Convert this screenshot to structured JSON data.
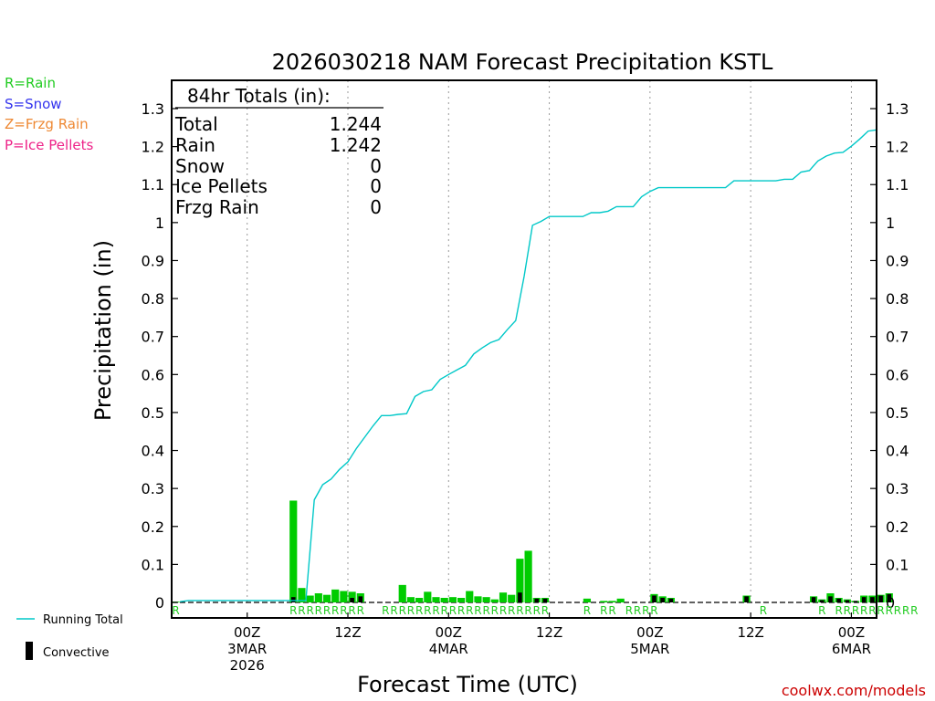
{
  "chart_data": {
    "type": "bar",
    "title": "2026030218 NAM Forecast Precipitation KSTL",
    "xlabel": "Forecast Time (UTC)",
    "ylabel": "Precipitation (in)",
    "ylim": [
      0,
      1.35
    ],
    "yticks": [
      0,
      0.1,
      0.2,
      0.3,
      0.4,
      0.5,
      0.6,
      0.7,
      0.8,
      0.9,
      1,
      1.1,
      1.2,
      1.3
    ],
    "ytick_labels": [
      "0",
      "0.1",
      "0.2",
      "0.3",
      "0.4",
      "0.5",
      "0.6",
      "0.7",
      "0.8",
      "0.9",
      "1",
      "1.1",
      "1.2",
      "1.3"
    ],
    "x_range_hours": [
      -3,
      81
    ],
    "x_ticks": [
      {
        "hour": 6,
        "line1": "00Z",
        "line2": "3MAR",
        "line3": "2026"
      },
      {
        "hour": 18,
        "line1": "12Z",
        "line2": "",
        "line3": ""
      },
      {
        "hour": 30,
        "line1": "00Z",
        "line2": "4MAR",
        "line3": ""
      },
      {
        "hour": 42,
        "line1": "12Z",
        "line2": "",
        "line3": ""
      },
      {
        "hour": 54,
        "line1": "00Z",
        "line2": "5MAR",
        "line3": ""
      },
      {
        "hour": 66,
        "line1": "12Z",
        "line2": "",
        "line3": ""
      },
      {
        "hour": 78,
        "line1": "00Z",
        "line2": "6MAR",
        "line3": ""
      }
    ],
    "series": [
      {
        "name": "Rain",
        "type": "bar",
        "color": "#00cc00",
        "values": [
          0.002,
          0,
          0,
          0,
          0,
          0,
          0,
          0,
          0,
          0,
          0,
          0,
          0,
          0,
          0.268,
          0.038,
          0.018,
          0.024,
          0.02,
          0.034,
          0.03,
          0.028,
          0.024,
          0,
          0,
          0,
          0,
          0.046,
          0.014,
          0.012,
          0.028,
          0.014,
          0.012,
          0.014,
          0.012,
          0.03,
          0.016,
          0.014,
          0.008,
          0.026,
          0.02,
          0.115,
          0.136,
          0.012,
          0.012,
          0,
          0,
          0,
          0,
          0.01,
          0,
          0.004,
          0.004,
          0.01,
          0,
          0,
          0,
          0.022,
          0.016,
          0.012,
          0,
          0,
          0,
          0,
          0,
          0,
          0,
          0,
          0.018,
          0,
          0,
          0,
          0,
          0,
          0,
          0,
          0.016,
          0.008,
          0.024,
          0.012,
          0.008,
          0.004,
          0.018,
          0.018,
          0.02,
          0.024
        ]
      },
      {
        "name": "Convective",
        "type": "bar",
        "color": "#000000",
        "values": [
          0,
          0,
          0,
          0,
          0,
          0,
          0,
          0,
          0,
          0,
          0,
          0,
          0,
          0,
          0.014,
          0,
          0,
          0,
          0,
          0,
          0,
          0.012,
          0.016,
          0,
          0,
          0,
          0,
          0,
          0,
          0,
          0,
          0,
          0,
          0,
          0,
          0,
          0,
          0,
          0,
          0,
          0,
          0.026,
          0,
          0.01,
          0.01,
          0,
          0,
          0,
          0,
          0,
          0,
          0,
          0,
          0,
          0,
          0,
          0,
          0.018,
          0.012,
          0.01,
          0,
          0,
          0,
          0,
          0,
          0,
          0,
          0,
          0.016,
          0,
          0,
          0,
          0,
          0,
          0,
          0,
          0.014,
          0.006,
          0.016,
          0.01,
          0.006,
          0.004,
          0.014,
          0.014,
          0.018,
          0.022
        ]
      },
      {
        "name": "Running Total",
        "type": "line",
        "color": "#00c8c8",
        "x": [
          -2,
          -1,
          13,
          14,
          15,
          16,
          17,
          18,
          19,
          20,
          21,
          22,
          23,
          24,
          25,
          26,
          27,
          28,
          29,
          30,
          31,
          32,
          33,
          34,
          35,
          36,
          37,
          38,
          39,
          40,
          41,
          42,
          43,
          44,
          45,
          46,
          47,
          48,
          49,
          50,
          51,
          52,
          53,
          54,
          55,
          56,
          57,
          58,
          59,
          60,
          61,
          62,
          63,
          64,
          65,
          66,
          67,
          68,
          69,
          70,
          71,
          72,
          73,
          74,
          75,
          76,
          77,
          78,
          79,
          80,
          81
        ],
        "y": [
          0.002,
          0.005,
          0.005,
          0.27,
          0.31,
          0.325,
          0.35,
          0.37,
          0.405,
          0.435,
          0.465,
          0.492,
          0.492,
          0.495,
          0.497,
          0.542,
          0.555,
          0.56,
          0.587,
          0.6,
          0.612,
          0.624,
          0.654,
          0.67,
          0.684,
          0.692,
          0.718,
          0.742,
          0.858,
          0.993,
          1.003,
          1.016,
          1.016,
          1.016,
          1.016,
          1.016,
          1.026,
          1.026,
          1.03,
          1.042,
          1.042,
          1.042,
          1.068,
          1.082,
          1.092,
          1.092,
          1.092,
          1.092,
          1.092,
          1.092,
          1.092,
          1.092,
          1.092,
          1.11,
          1.11,
          1.11,
          1.11,
          1.11,
          1.11,
          1.114,
          1.114,
          1.133,
          1.137,
          1.162,
          1.175,
          1.183,
          1.185,
          1.201,
          1.22,
          1.241,
          1.244
        ]
      }
    ],
    "bars_start_hour": -3,
    "precip_type_row": {
      "start_hour": -3,
      "markers": "R.............RRRRRRRRR..RRRRRRRRRRRRRRRRRRRR....R.RR.RRRR............R......R.RRRRRRRRRR"
    }
  },
  "totals_box": {
    "heading": "84hr Totals (in):",
    "rows": [
      {
        "label": "Total",
        "value": "1.244"
      },
      {
        "label": "Rain",
        "value": "1.242"
      },
      {
        "label": "Snow",
        "value": "0"
      },
      {
        "label": "Ice Pellets",
        "value": "0"
      },
      {
        "label": "Frzg Rain",
        "value": "0"
      }
    ]
  },
  "type_key": [
    {
      "text": "R=Rain",
      "color": "#22cc22"
    },
    {
      "text": "S=Snow",
      "color": "#3333ee"
    },
    {
      "text": "Z=Frzg Rain",
      "color": "#ee8833"
    },
    {
      "text": "P=Ice Pellets",
      "color": "#ee2288"
    }
  ],
  "legend": {
    "running_total": "Running Total",
    "convective": "Convective"
  },
  "colors": {
    "rain": "#00cc00",
    "convective": "#000000",
    "running_total": "#00c8c8",
    "credit": "#cc0000"
  },
  "credit": "coolwx.com/models"
}
